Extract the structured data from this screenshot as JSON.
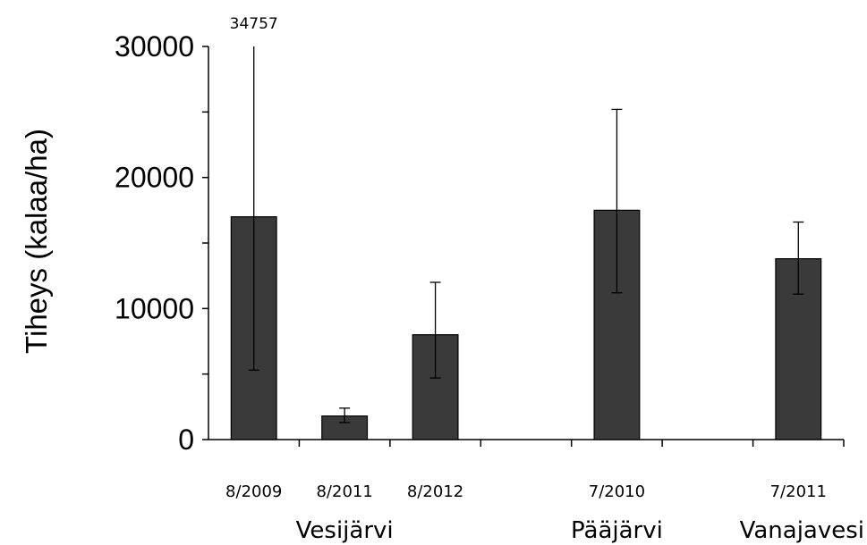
{
  "chart_data": {
    "type": "bar",
    "title": "",
    "ylabel": "Tiheys (kalaa/ha)",
    "xlabel": "",
    "ylim": [
      0,
      30000
    ],
    "yticks": [
      "0",
      "10000",
      "20000",
      "30000"
    ],
    "grid": false,
    "legend": "none",
    "bar_color": "#3a3a3a",
    "categories": [
      "8/2009",
      "8/2011",
      "8/2012",
      "",
      "7/2010",
      "",
      "7/2011"
    ],
    "values": [
      17000,
      1800,
      8000,
      null,
      17500,
      null,
      13800
    ],
    "error_low": [
      5300,
      1300,
      4700,
      null,
      11200,
      null,
      11100
    ],
    "error_high": [
      34757,
      2400,
      12000,
      null,
      25200,
      null,
      16600
    ],
    "groups": [
      {
        "label": "Vesijärvi",
        "slots": [
          0,
          1,
          2
        ]
      },
      {
        "label": "Pääjärvi",
        "slots": [
          4
        ]
      },
      {
        "label": "Vanajavesi",
        "slots": [
          6
        ]
      }
    ],
    "annotations": [
      {
        "slot": 0,
        "text": "34757"
      }
    ]
  }
}
